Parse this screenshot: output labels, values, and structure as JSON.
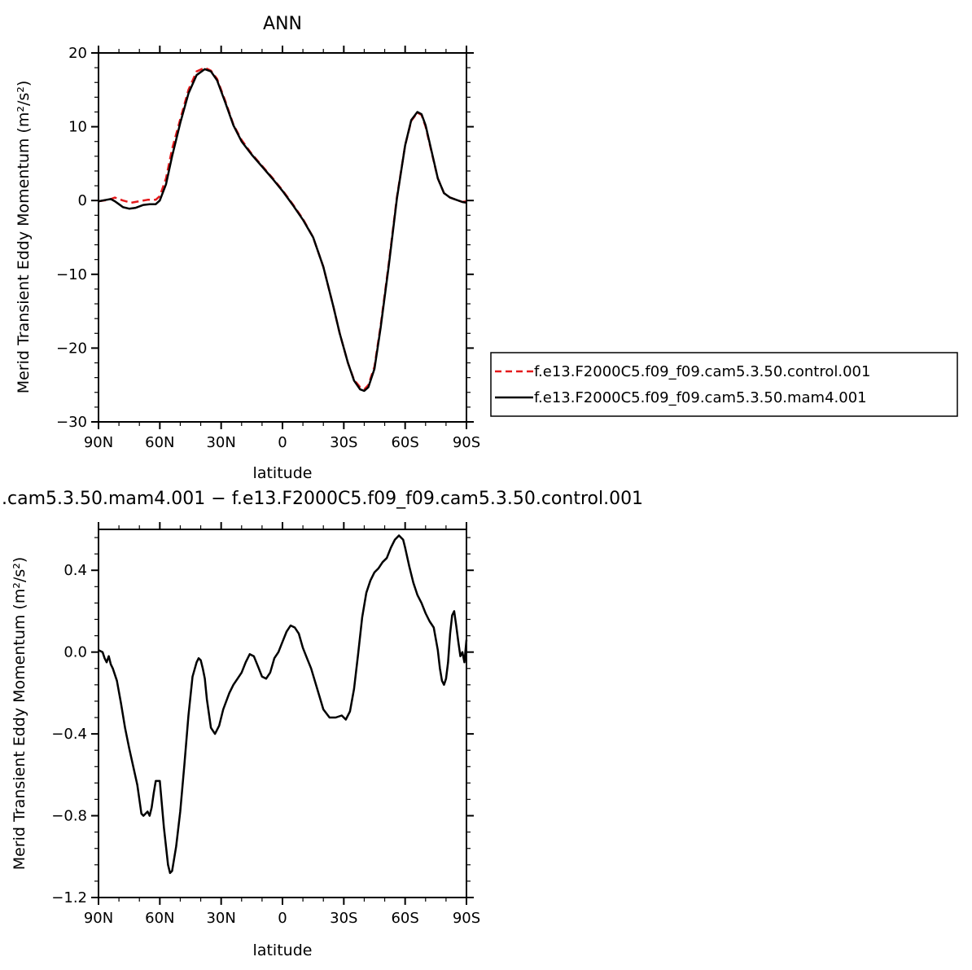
{
  "chart_data": [
    {
      "type": "line",
      "title": "ANN",
      "xlabel": "latitude",
      "ylabel": "Merid Transient Eddy Momentum (m²/s²)",
      "xlim": [
        90,
        -90
      ],
      "ylim": [
        -30,
        20
      ],
      "xticks": [
        90,
        60,
        30,
        0,
        -30,
        -60,
        -90
      ],
      "xticklabels": [
        "90N",
        "60N",
        "30N",
        "0",
        "30S",
        "60S",
        "90S"
      ],
      "yticks": [
        -30,
        -20,
        -10,
        0,
        10,
        20
      ],
      "yticklabels": [
        "−30",
        "−20",
        "−10",
        "0",
        "10",
        "20"
      ],
      "grid": false,
      "legend": "right",
      "series": [
        {
          "name": "f.e13.F2000C5.f09_f09.cam5.3.50.control.001",
          "color": "#e41a1c",
          "dash": "dashed",
          "x": [
            90,
            85,
            82,
            78,
            74,
            70,
            66,
            62,
            60,
            57,
            54,
            50,
            46,
            42,
            38,
            35,
            32,
            28,
            24,
            20,
            15,
            10,
            5,
            0,
            -5,
            -10,
            -15,
            -20,
            -25,
            -28,
            -32,
            -35,
            -38,
            -40,
            -42,
            -45,
            -48,
            -52,
            -56,
            -60,
            -63,
            -66,
            -68,
            -70,
            -73,
            -76,
            -79,
            -82,
            -85,
            -88,
            -90
          ],
          "y": [
            -0.1,
            0.1,
            0.4,
            0.0,
            -0.3,
            -0.1,
            0.1,
            0.1,
            0.6,
            3.0,
            7.0,
            11.0,
            15.0,
            17.5,
            18.0,
            17.6,
            16.5,
            13.5,
            10.3,
            8.2,
            6.3,
            4.7,
            3.1,
            1.4,
            -0.5,
            -2.5,
            -5.0,
            -9.0,
            -14.5,
            -18.0,
            -22.0,
            -24.3,
            -25.3,
            -25.6,
            -25.0,
            -22.5,
            -17.0,
            -8.5,
            0.5,
            7.5,
            10.8,
            11.9,
            11.6,
            10.0,
            6.5,
            3.0,
            1.0,
            0.4,
            0.1,
            -0.2,
            -0.1
          ]
        },
        {
          "name": "f.e13.F2000C5.f09_f09.cam5.3.50.mam4.001",
          "color": "#000000",
          "dash": "solid",
          "x": [
            90,
            86,
            84,
            82,
            80,
            78,
            75,
            72,
            68,
            65,
            62,
            60,
            57,
            54,
            50,
            46,
            42,
            38,
            35,
            32,
            28,
            24,
            20,
            15,
            10,
            5,
            0,
            -5,
            -10,
            -15,
            -20,
            -25,
            -28,
            -32,
            -35,
            -38,
            -40,
            -42,
            -45,
            -48,
            -52,
            -56,
            -60,
            -63,
            -66,
            -68,
            -70,
            -73,
            -76,
            -79,
            -82,
            -85,
            -88,
            -90
          ],
          "y": [
            -0.1,
            0.1,
            0.2,
            -0.1,
            -0.5,
            -0.9,
            -1.1,
            -1.0,
            -0.6,
            -0.5,
            -0.5,
            0.0,
            2.2,
            6.0,
            10.5,
            14.5,
            17.0,
            17.8,
            17.5,
            16.3,
            13.3,
            10.2,
            8.0,
            6.2,
            4.6,
            3.0,
            1.3,
            -0.6,
            -2.6,
            -5.0,
            -9.0,
            -14.5,
            -18.0,
            -22.0,
            -24.4,
            -25.6,
            -25.8,
            -25.3,
            -22.8,
            -17.3,
            -8.8,
            0.3,
            7.5,
            10.9,
            12.0,
            11.7,
            10.2,
            6.6,
            3.0,
            1.0,
            0.4,
            0.1,
            -0.2,
            -0.3
          ]
        }
      ]
    },
    {
      "type": "line",
      "title": ".cam5.3.50.mam4.001 − f.e13.F2000C5.f09_f09.cam5.3.50.control.001",
      "xlabel": "latitude",
      "ylabel": "Merid Transient Eddy Momentum (m²/s²)",
      "xlim": [
        90,
        -90
      ],
      "ylim": [
        -1.2,
        0.6
      ],
      "xticks": [
        90,
        60,
        30,
        0,
        -30,
        -60,
        -90
      ],
      "xticklabels": [
        "90N",
        "60N",
        "30N",
        "0",
        "30S",
        "60S",
        "90S"
      ],
      "yticks": [
        -1.2,
        -0.8,
        -0.4,
        0.0,
        0.4
      ],
      "yticklabels": [
        "−1.2",
        "−0.8",
        "−0.4",
        "0.0",
        "0.4"
      ],
      "grid": false,
      "series": [
        {
          "color": "#000000",
          "dash": "solid",
          "x": [
            90,
            88,
            87,
            86,
            85,
            84,
            83,
            81,
            79,
            77,
            75,
            73,
            71,
            70,
            69,
            68,
            67,
            66,
            65,
            64,
            63,
            62,
            60,
            58,
            56,
            55,
            54,
            52,
            50,
            48,
            46,
            44,
            42,
            41,
            40,
            39,
            38,
            37,
            35,
            33,
            31,
            29,
            26,
            24,
            22,
            20,
            18,
            16,
            14,
            12,
            10,
            8,
            6,
            4,
            2,
            0,
            -2,
            -4,
            -6,
            -8,
            -10,
            -12,
            -14,
            -17,
            -20,
            -23,
            -26,
            -29,
            -31,
            -33,
            -35,
            -37,
            -39,
            -41,
            -43,
            -45,
            -47,
            -49,
            -51,
            -53,
            -55,
            -57,
            -59,
            -60,
            -62,
            -64,
            -66,
            -68,
            -70,
            -72,
            -74,
            -76,
            -77,
            -78,
            -79,
            -80,
            -81,
            -82,
            -83,
            -84,
            -85,
            -86,
            -87,
            -88,
            -89,
            -90
          ],
          "y": [
            0.01,
            0.0,
            -0.03,
            -0.05,
            -0.02,
            -0.06,
            -0.08,
            -0.14,
            -0.25,
            -0.37,
            -0.47,
            -0.56,
            -0.65,
            -0.72,
            -0.79,
            -0.8,
            -0.79,
            -0.78,
            -0.8,
            -0.76,
            -0.69,
            -0.63,
            -0.63,
            -0.86,
            -1.04,
            -1.08,
            -1.07,
            -0.95,
            -0.78,
            -0.55,
            -0.31,
            -0.12,
            -0.05,
            -0.03,
            -0.04,
            -0.08,
            -0.13,
            -0.23,
            -0.37,
            -0.4,
            -0.36,
            -0.28,
            -0.2,
            -0.16,
            -0.13,
            -0.1,
            -0.05,
            -0.01,
            -0.02,
            -0.07,
            -0.12,
            -0.13,
            -0.1,
            -0.03,
            0.0,
            0.05,
            0.1,
            0.13,
            0.12,
            0.09,
            0.02,
            -0.03,
            -0.08,
            -0.18,
            -0.28,
            -0.32,
            -0.32,
            -0.31,
            -0.33,
            -0.29,
            -0.18,
            -0.01,
            0.17,
            0.29,
            0.35,
            0.39,
            0.41,
            0.44,
            0.46,
            0.51,
            0.55,
            0.57,
            0.55,
            0.51,
            0.42,
            0.34,
            0.28,
            0.24,
            0.19,
            0.15,
            0.12,
            0.01,
            -0.08,
            -0.14,
            -0.16,
            -0.13,
            -0.05,
            0.09,
            0.18,
            0.2,
            0.13,
            0.05,
            -0.02,
            0.0,
            -0.05,
            0.06
          ]
        }
      ]
    }
  ]
}
